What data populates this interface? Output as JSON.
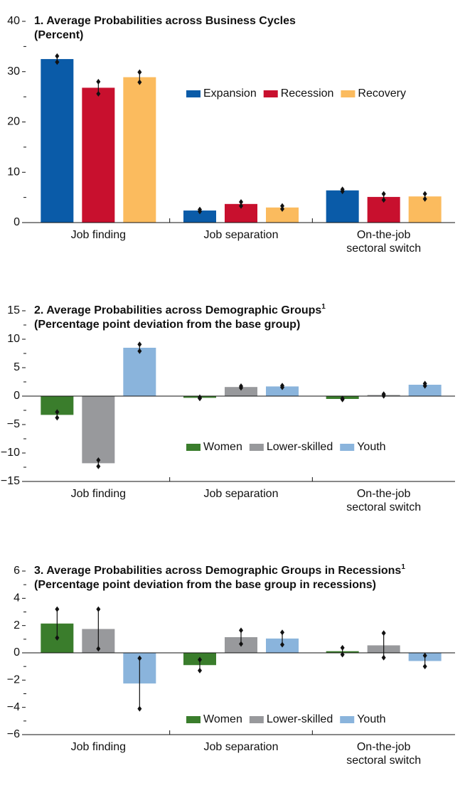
{
  "chart_data": [
    {
      "type": "bar",
      "title": "1. Average Probabilities across Business Cycles",
      "subtitle": "(Percent)",
      "categories": [
        "Job finding",
        "Job separation",
        "On-the-job\nsectoral switch"
      ],
      "series": [
        {
          "name": "Expansion",
          "color": "#0a5ba8",
          "values": [
            32.5,
            2.4,
            6.4
          ],
          "errors": [
            0.6,
            0.2,
            0.2
          ]
        },
        {
          "name": "Recession",
          "color": "#c8102e",
          "values": [
            26.8,
            3.7,
            5.1
          ],
          "errors": [
            1.2,
            0.4,
            0.6
          ]
        },
        {
          "name": "Recovery",
          "color": "#fbbb5e",
          "values": [
            28.9,
            3.0,
            5.2
          ],
          "errors": [
            1.0,
            0.3,
            0.5
          ]
        }
      ],
      "ylim": [
        0,
        40
      ],
      "yticks": [
        0,
        10,
        20,
        30,
        40
      ],
      "minor_yticks": [
        5,
        15,
        25,
        35
      ]
    },
    {
      "type": "bar",
      "title": "2. Average Probabilities across Demographic Groups",
      "footnote_marker": "1",
      "subtitle": "(Percentage point deviation from the base group)",
      "categories": [
        "Job finding",
        "Job separation",
        "On-the-job\nsectoral switch"
      ],
      "series": [
        {
          "name": "Women",
          "color": "#3a7d2c",
          "values": [
            -3.3,
            -0.3,
            -0.5
          ],
          "errors": [
            0.5,
            0.1,
            0.1
          ]
        },
        {
          "name": "Lower-skilled",
          "color": "#98999c",
          "values": [
            -11.8,
            1.6,
            0.2
          ],
          "errors": [
            0.55,
            0.15,
            0.15
          ]
        },
        {
          "name": "Youth",
          "color": "#8ab4dc",
          "values": [
            8.5,
            1.7,
            2.0
          ],
          "errors": [
            0.6,
            0.15,
            0.2
          ]
        }
      ],
      "ylim": [
        -15,
        15
      ],
      "yticks": [
        {
          "value": -15,
          "label": "−15"
        },
        {
          "value": -10,
          "label": "−10"
        },
        {
          "value": -5,
          "label": "−5"
        },
        0,
        5,
        10,
        15
      ],
      "minor_yticks": [
        -12.5,
        -7.5,
        -2.5,
        2.5,
        7.5,
        12.5
      ]
    },
    {
      "type": "bar",
      "title": "3. Average Probabilities across Demographic Groups in Recessions",
      "footnote_marker": "1",
      "subtitle": "(Percentage point deviation from the base group in recessions)",
      "categories": [
        "Job finding",
        "Job separation",
        "On-the-job\nsectoral switch"
      ],
      "series": [
        {
          "name": "Women",
          "color": "#3a7d2c",
          "values": [
            2.15,
            -0.9,
            0.12
          ],
          "errors": [
            1.05,
            0.4,
            0.25
          ]
        },
        {
          "name": "Lower-skilled",
          "color": "#98999c",
          "values": [
            1.75,
            1.15,
            0.55
          ],
          "errors": [
            1.45,
            0.5,
            0.9
          ]
        },
        {
          "name": "Youth",
          "color": "#8ab4dc",
          "values": [
            -2.25,
            1.05,
            -0.6
          ],
          "errors": [
            1.85,
            0.45,
            0.4
          ]
        }
      ],
      "ylim": [
        -6,
        6
      ],
      "yticks": [
        {
          "value": -6,
          "label": "−6"
        },
        {
          "value": -4,
          "label": "−4"
        },
        {
          "value": -2,
          "label": "−2"
        },
        0,
        2,
        4,
        6
      ],
      "minor_yticks": [
        -5,
        -3,
        -1,
        1,
        3,
        5
      ]
    }
  ]
}
